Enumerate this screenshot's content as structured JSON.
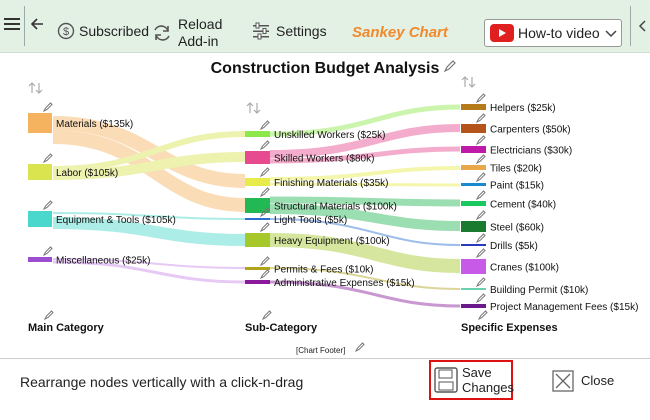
{
  "toolbar": {
    "subscribed": "Subscribed",
    "reload_line1": "Reload",
    "reload_line2": "Add-in",
    "settings": "Settings",
    "app_name": "Sankey Chart",
    "howto": "How-to video"
  },
  "chart": {
    "title": "Construction Budget Analysis",
    "col1": "Main Category",
    "col2": "Sub-Category",
    "col3": "Specific Expenses",
    "footer": "[Chart Footer]"
  },
  "nodes_main": [
    {
      "label": "Materials ($135k)",
      "color": "#f5b35f"
    },
    {
      "label": "Labor ($105k)",
      "color": "#d9e44f"
    },
    {
      "label": "Equipment & Tools ($105k)",
      "color": "#4ad8cc"
    },
    {
      "label": "Miscellaneous ($25k)",
      "color": "#9b4fd0"
    }
  ],
  "nodes_sub": [
    {
      "label": "Unskilled Workers ($25k)",
      "color": "#8de84a"
    },
    {
      "label": "Skilled Workers ($80k)",
      "color": "#e84a90"
    },
    {
      "label": "Finishing Materials ($35k)",
      "color": "#e8ec4a"
    },
    {
      "label": "Structural Materials ($100k)",
      "color": "#22b854"
    },
    {
      "label": "Light Tools ($5k)",
      "color": "#2a6fd0"
    },
    {
      "label": "Heavy Equipment ($100k)",
      "color": "#a6c82a"
    },
    {
      "label": "Permits & Fees ($10k)",
      "color": "#b0a41a"
    },
    {
      "label": "Administrative Expenses ($15k)",
      "color": "#8a1a9a"
    }
  ],
  "nodes_exp": [
    {
      "label": "Helpers ($25k)",
      "color": "#b57a1a"
    },
    {
      "label": "Carpenters ($50k)",
      "color": "#b5541a"
    },
    {
      "label": "Electricians ($30k)",
      "color": "#c01aa8"
    },
    {
      "label": "Tiles ($20k)",
      "color": "#e8a84a"
    },
    {
      "label": "Paint ($15k)",
      "color": "#1a8ad0"
    },
    {
      "label": "Cement ($40k)",
      "color": "#1ac860"
    },
    {
      "label": "Steel ($60k)",
      "color": "#1a7a30"
    },
    {
      "label": "Drills ($5k)",
      "color": "#2a3ac0"
    },
    {
      "label": "Cranes ($100k)",
      "color": "#c85ae8"
    },
    {
      "label": "Building Permit ($10k)",
      "color": "#6ad0b0"
    },
    {
      "label": "Project Management Fees ($15k)",
      "color": "#6a1a8a"
    }
  ],
  "bottom": {
    "hint": "Rearrange nodes vertically with a click-n-drag",
    "save_line1": "Save",
    "save_line2": "Changes",
    "close": "Close"
  }
}
